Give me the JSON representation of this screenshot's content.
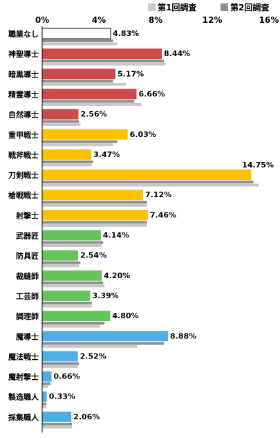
{
  "chart_data": {
    "type": "bar",
    "title": "",
    "xlabel": "",
    "ylabel": "",
    "xlim": [
      0,
      16
    ],
    "x_ticks": [
      "0%",
      "4%",
      "8%",
      "12%",
      "16%"
    ],
    "legend_position": "top-right",
    "legend": [
      {
        "name": "第1回調査",
        "color": "#c8c8c8"
      },
      {
        "name": "第2回調査",
        "color": "#8f8f8f"
      }
    ],
    "categories": [
      "職業なし",
      "神聖導士",
      "暗黒導士",
      "精霊導士",
      "自然導士",
      "重甲戦士",
      "戦斧戦士",
      "刀剣戦士",
      "槍戦戦士",
      "射撃士",
      "武器匠",
      "防具匠",
      "裁縫師",
      "工芸師",
      "調理師",
      "魔導士",
      "魔法戦士",
      "魔射撃士",
      "製造職人",
      "採集職人"
    ],
    "series": [
      {
        "name": "",
        "values": [
          4.83,
          8.44,
          5.17,
          6.66,
          2.56,
          6.03,
          3.47,
          14.75,
          7.12,
          7.46,
          4.14,
          2.54,
          4.2,
          3.39,
          4.8,
          8.88,
          2.52,
          0.66,
          0.33,
          2.06
        ],
        "value_labels": [
          "4.83%",
          "8.44%",
          "5.17%",
          "6.66%",
          "2.56%",
          "6.03%",
          "3.47%",
          "14.75%",
          "7.12%",
          "7.46%",
          "4.14%",
          "2.54%",
          "4.20%",
          "3.39%",
          "4.80%",
          "8.88%",
          "2.52%",
          "0.66%",
          "0.33%",
          "2.06%"
        ],
        "colors": [
          "#ffffff",
          "#cc4c4c",
          "#cc4c4c",
          "#cc4c4c",
          "#cc4c4c",
          "#ffc000",
          "#ffc000",
          "#ffc000",
          "#ffc000",
          "#ffc000",
          "#66c45c",
          "#66c45c",
          "#66c45c",
          "#66c45c",
          "#66c45c",
          "#4faee6",
          "#4faee6",
          "#4faee6",
          "#4faee6",
          "#4faee6"
        ]
      },
      {
        "name": "第2回調査",
        "values": [
          5.0,
          8.6,
          5.0,
          6.5,
          2.6,
          5.3,
          3.6,
          14.9,
          7.4,
          7.4,
          4.3,
          2.7,
          4.3,
          3.5,
          4.4,
          8.6,
          2.6,
          0.6,
          0.3,
          2.1
        ]
      },
      {
        "name": "第1回調査",
        "values": [
          5.3,
          8.7,
          5.9,
          7.0,
          2.7,
          5.0,
          3.5,
          15.3,
          7.4,
          7.4,
          4.2,
          2.6,
          4.4,
          3.5,
          4.1,
          6.7,
          2.5,
          0.4,
          0.3,
          2.1
        ]
      }
    ],
    "grid": false
  }
}
